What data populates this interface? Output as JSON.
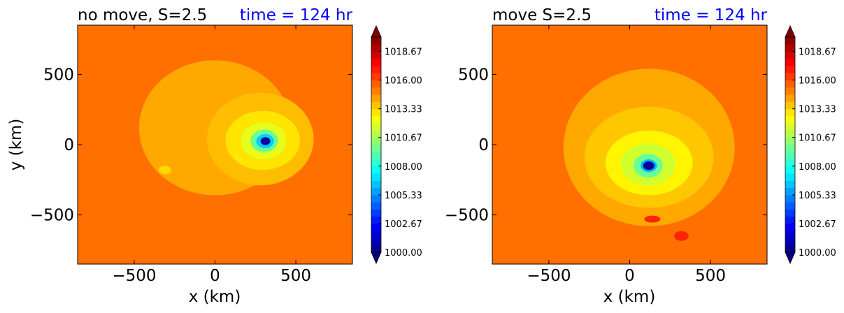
{
  "chart_data": [
    {
      "type": "contourf",
      "title": "no move, S=2.5",
      "time_label": "time = 124 hr",
      "xlabel": "x (km)",
      "ylabel": "y (km)",
      "xlim": [
        -850,
        850
      ],
      "ylim": [
        -850,
        850
      ],
      "xticks": [
        -500,
        0,
        500
      ],
      "yticks": [
        -500,
        0,
        500
      ],
      "xtick_labels": [
        "−500",
        "0",
        "500"
      ],
      "ytick_labels": [
        "−500",
        "0",
        "500"
      ],
      "colormap": "jet",
      "levels_min": 1000.0,
      "levels_max": 1020.0,
      "background_value": 1015.3,
      "colorbar_ticks": [
        1000.0,
        1002.67,
        1005.33,
        1008.0,
        1010.67,
        1013.33,
        1016.0,
        1018.67
      ],
      "colorbar_labels": [
        "1000.00",
        "1002.67",
        "1005.33",
        "1008.00",
        "1010.67",
        "1013.33",
        "1016.00",
        "1018.67"
      ],
      "colorbar_extend": "both",
      "features": [
        {
          "shape": "outer-ring",
          "center_km": [
            0,
            120
          ],
          "radius_km": [
            470,
            480
          ],
          "value": 1014.2
        },
        {
          "shape": "inner-plateau",
          "center_km": [
            280,
            40
          ],
          "radius_km": [
            330,
            330
          ],
          "value": 1013.8
        },
        {
          "shape": "ring",
          "center_km": [
            295,
            30
          ],
          "radius_km": [
            230,
            210
          ],
          "value": 1013.0
        },
        {
          "shape": "ring",
          "center_km": [
            300,
            28
          ],
          "radius_km": [
            140,
            130
          ],
          "value": 1012.0
        },
        {
          "shape": "ring",
          "center_km": [
            305,
            27
          ],
          "radius_km": [
            85,
            80
          ],
          "value": 1009.5
        },
        {
          "shape": "ring",
          "center_km": [
            310,
            25
          ],
          "radius_km": [
            55,
            50
          ],
          "value": 1006.5
        },
        {
          "shape": "core",
          "center_km": [
            312,
            25
          ],
          "radius_km": [
            30,
            28
          ],
          "value": 1000.5
        },
        {
          "shape": "blob",
          "center_km": [
            -310,
            -180
          ],
          "radius_km": [
            40,
            30
          ],
          "value": 1013.3
        }
      ]
    },
    {
      "type": "contourf",
      "title": "move S=2.5",
      "time_label": "time = 124 hr",
      "xlabel": "x (km)",
      "ylabel": "",
      "xlim": [
        -850,
        850
      ],
      "ylim": [
        -850,
        850
      ],
      "xticks": [
        -500,
        0,
        500
      ],
      "yticks": [
        -500,
        0,
        500
      ],
      "xtick_labels": [
        "−500",
        "0",
        "500"
      ],
      "ytick_labels": [
        "−500",
        "0",
        "500"
      ],
      "colormap": "jet",
      "levels_min": 1000.0,
      "levels_max": 1020.0,
      "background_value": 1015.3,
      "colorbar_ticks": [
        1000.0,
        1002.67,
        1005.33,
        1008.0,
        1010.67,
        1013.33,
        1016.0,
        1018.67
      ],
      "colorbar_labels": [
        "1000.00",
        "1002.67",
        "1005.33",
        "1008.00",
        "1010.67",
        "1013.33",
        "1016.00",
        "1018.67"
      ],
      "colorbar_extend": "both",
      "features": [
        {
          "shape": "outer-ring",
          "center_km": [
            120,
            -20
          ],
          "radius_km": [
            530,
            560
          ],
          "value": 1014.2
        },
        {
          "shape": "inner-plateau",
          "center_km": [
            120,
            -90
          ],
          "radius_km": [
            400,
            360
          ],
          "value": 1013.6
        },
        {
          "shape": "ring",
          "center_km": [
            120,
            -130
          ],
          "radius_km": [
            270,
            230
          ],
          "value": 1012.7
        },
        {
          "shape": "ring",
          "center_km": [
            115,
            -140
          ],
          "radius_km": [
            170,
            150
          ],
          "value": 1011.6
        },
        {
          "shape": "ring",
          "center_km": [
            115,
            -150
          ],
          "radius_km": [
            90,
            85
          ],
          "value": 1009.5
        },
        {
          "shape": "ring",
          "center_km": [
            118,
            -150
          ],
          "radius_km": [
            50,
            45
          ],
          "value": 1006.0
        },
        {
          "shape": "core",
          "center_km": [
            118,
            -150
          ],
          "radius_km": [
            35,
            30
          ],
          "value": 1000.5
        },
        {
          "shape": "blob",
          "center_km": [
            320,
            -650
          ],
          "radius_km": [
            45,
            35
          ],
          "value": 1016.8
        },
        {
          "shape": "blob",
          "center_km": [
            140,
            -530
          ],
          "radius_km": [
            50,
            25
          ],
          "value": 1016.8
        }
      ]
    }
  ]
}
